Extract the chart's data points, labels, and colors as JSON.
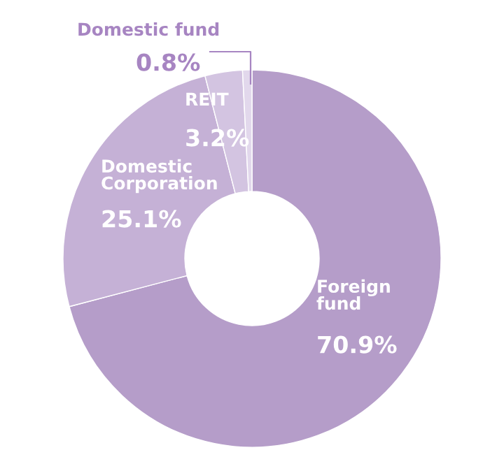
{
  "chart_data": {
    "type": "donut",
    "categories": [
      "Foreign fund",
      "Domestic Corporation",
      "REIT",
      "Domestic fund"
    ],
    "values": [
      70.9,
      25.1,
      3.2,
      0.8
    ],
    "colors": [
      "#b59dc9",
      "#c5b1d6",
      "#d3c4e1",
      "#e2d8ec"
    ],
    "value_labels": [
      "70.9%",
      "25.1%",
      "3.2%",
      "0.8%"
    ]
  }
}
